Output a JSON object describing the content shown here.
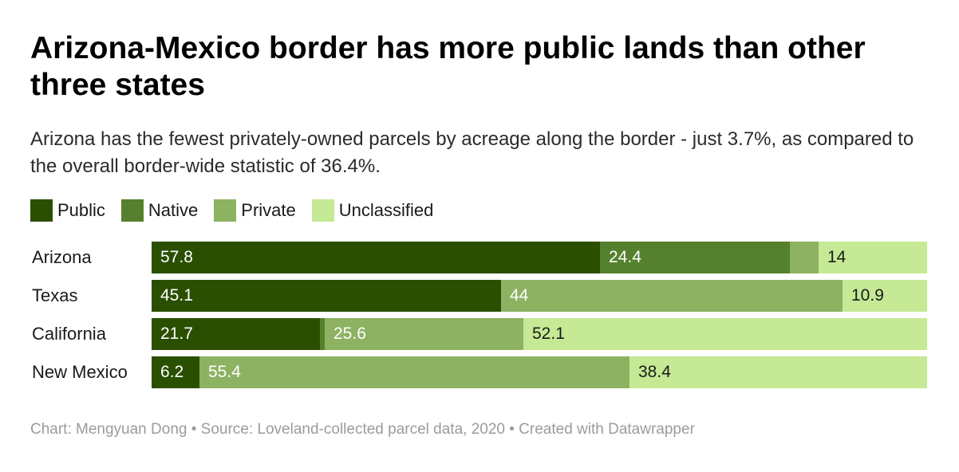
{
  "title": "Arizona-Mexico border has more public lands than other three states",
  "subtitle": "Arizona has the fewest privately-owned parcels by acreage along the border - just 3.7%, as compared to the overall border-wide statistic of 36.4%.",
  "footer": "Chart: Mengyuan Dong • Source: Loveland-collected parcel data, 2020 • Created with Datawrapper",
  "chart_data": {
    "type": "bar",
    "orientation": "horizontal",
    "stacked": true,
    "categories": [
      "Arizona",
      "Texas",
      "California",
      "New Mexico"
    ],
    "series": [
      {
        "name": "Public",
        "color": "#2b4f00",
        "values": [
          57.8,
          45.1,
          21.7,
          6.2
        ],
        "labels": [
          "57.8",
          "45.1",
          "21.7",
          "6.2"
        ]
      },
      {
        "name": "Native",
        "color": "#55802d",
        "values": [
          24.4,
          0,
          0.6,
          0
        ],
        "labels": [
          "24.4",
          "",
          "",
          ""
        ]
      },
      {
        "name": "Private",
        "color": "#8db262",
        "values": [
          3.7,
          44,
          25.6,
          55.4
        ],
        "labels": [
          "",
          "44",
          "25.6",
          "55.4"
        ]
      },
      {
        "name": "Unclassified",
        "color": "#c5e994",
        "values": [
          14,
          10.9,
          52.1,
          38.4
        ],
        "labels": [
          "14",
          "10.9",
          "52.1",
          "38.4"
        ]
      }
    ],
    "label_colors": [
      "#ffffff",
      "#ffffff",
      "#ffffff",
      "#1a1a1a"
    ],
    "xlim": [
      0,
      100
    ],
    "legend_position": "top-left",
    "grid": false
  }
}
